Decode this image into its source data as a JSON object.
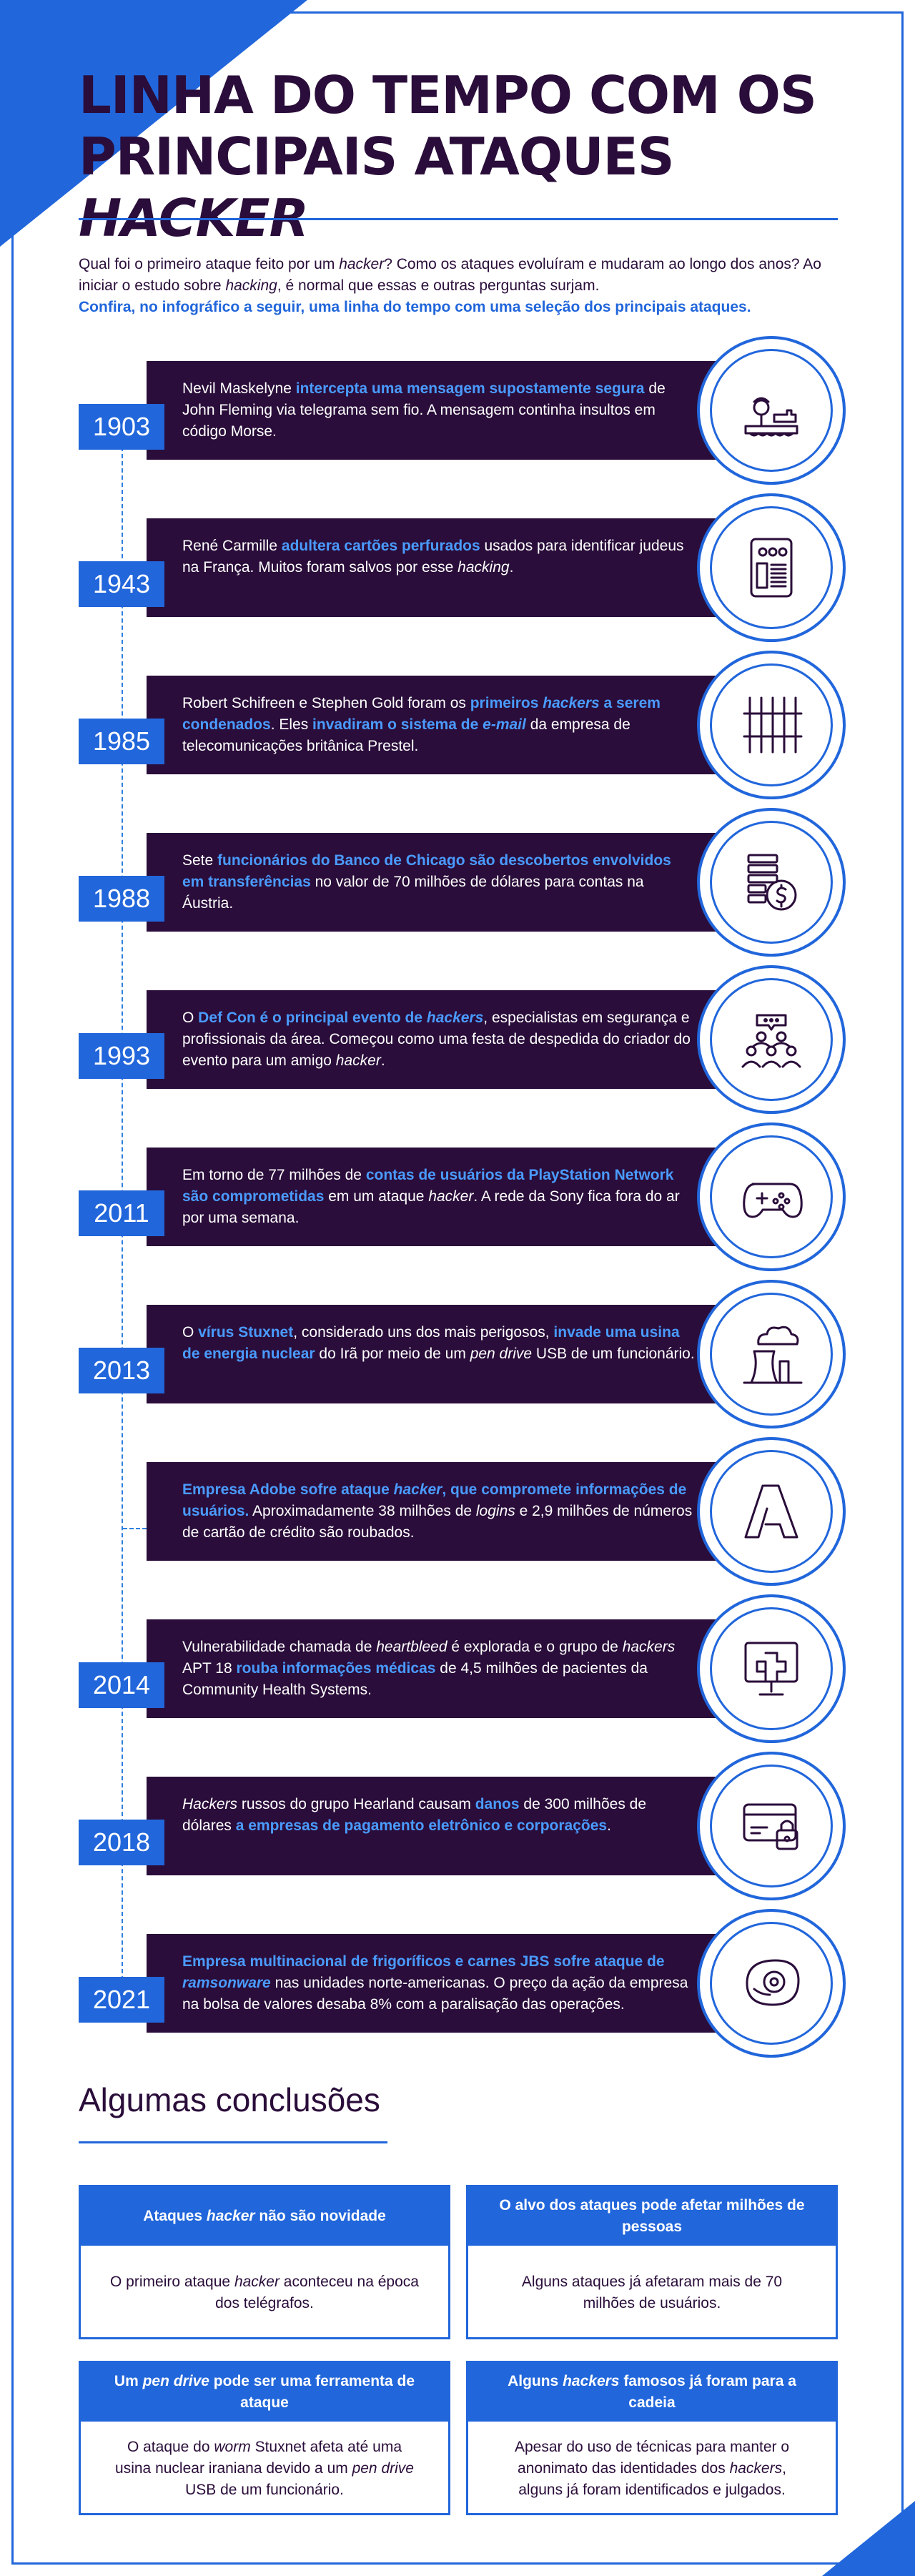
{
  "colors": {
    "brand_blue": "#2166db",
    "dark_purple": "#2a0d3a",
    "highlight_blue": "#4a9bff"
  },
  "header": {
    "title_line1": "LINHA DO TEMPO COM OS",
    "title_line2": "PRINCIPAIS ATAQUES ",
    "title_italic": "HACKER"
  },
  "intro": {
    "p1_a": "Qual foi o primeiro ataque feito por um ",
    "p1_i": "hacker",
    "p1_b": "? Como os ataques evoluíram e mudaram ao longo dos anos? Ao iniciar o estudo sobre ",
    "p1_i2": "hacking",
    "p1_c": ", é normal que essas e outras perguntas surjam.",
    "p2": "Confira, no infográfico a seguir, uma linha do tempo com uma seleção dos principais ataques."
  },
  "events": [
    {
      "year": "1903",
      "icon": "telegraph-icon",
      "parts": [
        [
          "Nevil Maskelyne ",
          ""
        ],
        [
          "intercepta uma mensagem supostamente segura",
          "hl"
        ],
        [
          " de John Fleming via telegrama sem fio. A mensagem continha insultos em código Morse.",
          ""
        ]
      ]
    },
    {
      "year": "1943",
      "icon": "punch-card-icon",
      "parts": [
        [
          "René Carmille ",
          ""
        ],
        [
          "adultera cartões perfurados",
          "hl"
        ],
        [
          " usados para identificar judeus na França. Muitos foram salvos por esse ",
          ""
        ],
        [
          "hacking",
          "i"
        ],
        [
          ".",
          ""
        ]
      ]
    },
    {
      "year": "1985",
      "icon": "prison-bars-icon",
      "parts": [
        [
          "Robert Schifreen e Stephen Gold foram os ",
          ""
        ],
        [
          "primeiros ",
          "hl"
        ],
        [
          "hackers",
          "hli"
        ],
        [
          " a serem condenados",
          "hl"
        ],
        [
          ". Eles ",
          ""
        ],
        [
          "invadiram o sistema de ",
          "hl"
        ],
        [
          "e-mail",
          "hli"
        ],
        [
          " da empresa de telecomunicações britânica Prestel.",
          ""
        ]
      ]
    },
    {
      "year": "1988",
      "icon": "money-stack-icon",
      "parts": [
        [
          "Sete ",
          ""
        ],
        [
          "funcionários do Banco de Chicago são descobertos envolvidos em transferências",
          "hl"
        ],
        [
          " no valor de 70 milhões de dólares para contas na Áustria.",
          ""
        ]
      ]
    },
    {
      "year": "1993",
      "icon": "conference-icon",
      "parts": [
        [
          "O ",
          ""
        ],
        [
          "Def Con é o principal evento de ",
          "hl"
        ],
        [
          "hackers",
          "hli"
        ],
        [
          ", especialistas em segurança e profissionais da área. Começou como uma festa de despedida do criador do evento para um amigo ",
          ""
        ],
        [
          "hacker",
          "i"
        ],
        [
          ".",
          ""
        ]
      ]
    },
    {
      "year": "2011",
      "icon": "gamepad-icon",
      "parts": [
        [
          "Em torno de 77 milhões de ",
          ""
        ],
        [
          "contas de usuários da PlayStation Network são comprometidas",
          "hl"
        ],
        [
          " em um ataque ",
          ""
        ],
        [
          "hacker",
          "i"
        ],
        [
          ". A rede da Sony fica fora do ar por uma semana.",
          ""
        ]
      ]
    },
    {
      "year": "2013",
      "icon": "nuclear-plant-icon",
      "parts": [
        [
          "O ",
          ""
        ],
        [
          "vírus Stuxnet",
          "hl"
        ],
        [
          ", considerado uns dos mais perigosos, ",
          ""
        ],
        [
          "invade uma usina de energia nuclear",
          "hl"
        ],
        [
          " do Irã por meio de um ",
          ""
        ],
        [
          "pen drive",
          "i"
        ],
        [
          " USB de um funcionário.",
          ""
        ]
      ]
    },
    {
      "year": "",
      "icon": "adobe-icon",
      "parts": [
        [
          "Empresa Adobe sofre ataque ",
          "hl"
        ],
        [
          "hacker",
          "hli"
        ],
        [
          ", que compromete informações de usuários.",
          "hl"
        ],
        [
          " Aproximadamente 38 milhões de ",
          ""
        ],
        [
          "logins",
          "i"
        ],
        [
          " e 2,9 milhões de números de cartão de crédito são roubados.",
          ""
        ]
      ]
    },
    {
      "year": "2014",
      "icon": "medical-monitor-icon",
      "parts": [
        [
          "Vulnerabilidade chamada de ",
          ""
        ],
        [
          "heartbleed",
          "i"
        ],
        [
          " é explorada e o grupo de ",
          ""
        ],
        [
          "hackers",
          "i"
        ],
        [
          " APT 18 ",
          ""
        ],
        [
          "rouba informações médicas",
          "hl"
        ],
        [
          " de 4,5 milhões de pacientes da Community Health Systems.",
          ""
        ]
      ]
    },
    {
      "year": "2018",
      "icon": "locked-card-icon",
      "parts": [
        [
          "Hackers",
          "i"
        ],
        [
          " russos do grupo Hearland causam ",
          ""
        ],
        [
          "danos",
          "hl"
        ],
        [
          " de 300 milhões de dólares ",
          ""
        ],
        [
          "a empresas de pagamento eletrônico e corporações",
          "hl"
        ],
        [
          ".",
          ""
        ]
      ]
    },
    {
      "year": "2021",
      "icon": "meat-icon",
      "parts": [
        [
          "Empresa multinacional de frigoríficos e carnes JBS sofre ataque de ",
          "hl"
        ],
        [
          "ramsonware",
          "hli"
        ],
        [
          " nas unidades norte-americanas. O preço da ação da empresa na bolsa de valores desaba 8% com a paralisação das operações.",
          ""
        ]
      ]
    }
  ],
  "conclusions": {
    "title": "Algumas conclusões",
    "cards": [
      {
        "head": [
          [
            "Ataques ",
            ""
          ],
          [
            "hacker",
            "i"
          ],
          [
            " não são novidade",
            ""
          ]
        ],
        "body": [
          [
            "O primeiro ataque ",
            ""
          ],
          [
            "hacker",
            "i"
          ],
          [
            " aconteceu na época dos telégrafos.",
            ""
          ]
        ]
      },
      {
        "head": [
          [
            "O alvo dos ataques pode afetar milhões de pessoas",
            ""
          ]
        ],
        "body": [
          [
            "Alguns ataques já afetaram mais de 70 milhões de usuários.",
            ""
          ]
        ]
      },
      {
        "head": [
          [
            "Um ",
            ""
          ],
          [
            "pen drive",
            "i"
          ],
          [
            " pode ser uma ferramenta de ataque",
            ""
          ]
        ],
        "body": [
          [
            "O ataque do ",
            ""
          ],
          [
            "worm",
            "i"
          ],
          [
            " Stuxnet afeta até uma usina nuclear iraniana devido a um ",
            ""
          ],
          [
            "pen drive",
            "i"
          ],
          [
            " USB de um funcionário.",
            ""
          ]
        ]
      },
      {
        "head": [
          [
            "Alguns ",
            ""
          ],
          [
            "hackers",
            "i"
          ],
          [
            " famosos já foram para a cadeia",
            ""
          ]
        ],
        "body": [
          [
            "Apesar do uso de técnicas para manter o anonimato das identidades dos ",
            ""
          ],
          [
            "hackers",
            "i"
          ],
          [
            ", alguns já foram identificados e julgados.",
            ""
          ]
        ]
      }
    ]
  }
}
